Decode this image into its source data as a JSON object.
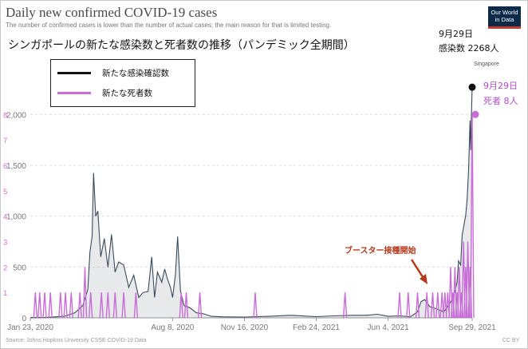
{
  "header": {
    "title": "Daily new confirmed COVID-19 cases",
    "subtitle": "The number of confirmed cases is lower than the number of actual cases; the main reason for that is limited testing.",
    "jp_title": "シンガポールの新たな感染数と死者数の推移（パンデミック全期間）",
    "logo_line1": "Our World",
    "logo_line2": "in Data"
  },
  "footer": {
    "source": "Source: Johns Hopkins University CSSE COVID-19 Data",
    "license": "CC BY"
  },
  "legend": {
    "cases_label": "新たな感染確認数",
    "deaths_label": "新たな死者数"
  },
  "annotations": {
    "cases_date": "9月29日",
    "cases_value": "感染数 2268人",
    "country_label": "Singapore",
    "deaths_date": "9月29日",
    "deaths_value": "死者 8人",
    "booster_label": "ブースター接種開始"
  },
  "colors": {
    "cases": "#111111",
    "cases_fill": "#3a4a5c",
    "deaths": "#c86dd7",
    "deaths_axis": "#d36fbf",
    "booster": "#b53a1b",
    "grid": "#dddddd",
    "axis_text": "#777777"
  },
  "chart_data": {
    "type": "line",
    "title": "Daily new confirmed COVID-19 cases",
    "x_ticks": [
      "Jan 23, 2020",
      "Aug 8, 2020",
      "Nov 16, 2020",
      "Feb 24, 2021",
      "Jun 4, 2021",
      "Sep 29, 2021"
    ],
    "x_range": [
      "2020-01-23",
      "2021-09-29"
    ],
    "y_left_ticks": [
      "0",
      "500",
      "1,000",
      "1,500",
      "2,000"
    ],
    "y_left_range": [
      0,
      2450
    ],
    "y_right_ticks": [
      "1",
      "2",
      "3",
      "4",
      "5",
      "6",
      "7",
      "8"
    ],
    "y_right_range": [
      0,
      9.8
    ],
    "grid": true,
    "legend_position": "top-left",
    "series": [
      {
        "name": "新たな感染確認数",
        "axis": "left",
        "points": [
          [
            "2020-01-23",
            2
          ],
          [
            "2020-02-15",
            5
          ],
          [
            "2020-03-10",
            15
          ],
          [
            "2020-03-25",
            50
          ],
          [
            "2020-04-05",
            120
          ],
          [
            "2020-04-12",
            280
          ],
          [
            "2020-04-15",
            650
          ],
          [
            "2020-04-18",
            800
          ],
          [
            "2020-04-20",
            1425
          ],
          [
            "2020-04-23",
            1000
          ],
          [
            "2020-04-26",
            1050
          ],
          [
            "2020-04-30",
            600
          ],
          [
            "2020-05-05",
            780
          ],
          [
            "2020-05-10",
            500
          ],
          [
            "2020-05-15",
            820
          ],
          [
            "2020-05-20",
            450
          ],
          [
            "2020-05-25",
            550
          ],
          [
            "2020-06-01",
            520
          ],
          [
            "2020-06-08",
            300
          ],
          [
            "2020-06-15",
            420
          ],
          [
            "2020-06-22",
            200
          ],
          [
            "2020-06-28",
            250
          ],
          [
            "2020-07-05",
            260
          ],
          [
            "2020-07-10",
            600
          ],
          [
            "2020-07-14",
            200
          ],
          [
            "2020-07-18",
            450
          ],
          [
            "2020-07-24",
            350
          ],
          [
            "2020-07-28",
            480
          ],
          [
            "2020-08-01",
            380
          ],
          [
            "2020-08-05",
            300
          ],
          [
            "2020-08-08",
            200
          ],
          [
            "2020-08-12",
            430
          ],
          [
            "2020-08-15",
            800
          ],
          [
            "2020-08-19",
            260
          ],
          [
            "2020-08-24",
            120
          ],
          [
            "2020-09-01",
            100
          ],
          [
            "2020-09-10",
            50
          ],
          [
            "2020-09-20",
            40
          ],
          [
            "2020-10-01",
            15
          ],
          [
            "2020-10-15",
            10
          ],
          [
            "2020-11-16",
            8
          ],
          [
            "2020-12-20",
            15
          ],
          [
            "2021-01-20",
            25
          ],
          [
            "2021-02-24",
            12
          ],
          [
            "2021-03-20",
            20
          ],
          [
            "2021-04-15",
            25
          ],
          [
            "2021-05-05",
            25
          ],
          [
            "2021-05-20",
            35
          ],
          [
            "2021-06-04",
            15
          ],
          [
            "2021-06-20",
            20
          ],
          [
            "2021-07-05",
            10
          ],
          [
            "2021-07-15",
            60
          ],
          [
            "2021-07-20",
            160
          ],
          [
            "2021-07-25",
            180
          ],
          [
            "2021-08-01",
            110
          ],
          [
            "2021-08-10",
            90
          ],
          [
            "2021-08-20",
            60
          ],
          [
            "2021-08-25",
            100
          ],
          [
            "2021-09-01",
            180
          ],
          [
            "2021-09-05",
            260
          ],
          [
            "2021-09-08",
            350
          ],
          [
            "2021-09-10",
            560
          ],
          [
            "2021-09-13",
            520
          ],
          [
            "2021-09-15",
            810
          ],
          [
            "2021-09-18",
            930
          ],
          [
            "2021-09-20",
            1010
          ],
          [
            "2021-09-22",
            1170
          ],
          [
            "2021-09-24",
            1450
          ],
          [
            "2021-09-26",
            1940
          ],
          [
            "2021-09-27",
            1650
          ],
          [
            "2021-09-28",
            2000
          ],
          [
            "2021-09-29",
            2268
          ]
        ]
      },
      {
        "name": "新たな死者数",
        "axis": "right",
        "points": [
          [
            "2020-01-30",
            1
          ],
          [
            "2020-02-05",
            1
          ],
          [
            "2020-02-12",
            1
          ],
          [
            "2020-02-20",
            1
          ],
          [
            "2020-03-05",
            1
          ],
          [
            "2020-03-12",
            1
          ],
          [
            "2020-03-20",
            1
          ],
          [
            "2020-04-01",
            1
          ],
          [
            "2020-04-08",
            2
          ],
          [
            "2020-04-16",
            1
          ],
          [
            "2020-05-01",
            1
          ],
          [
            "2020-05-10",
            1
          ],
          [
            "2020-05-20",
            1
          ],
          [
            "2020-06-01",
            1
          ],
          [
            "2020-06-18",
            1
          ],
          [
            "2020-08-20",
            1
          ],
          [
            "2020-08-27",
            1
          ],
          [
            "2020-09-15",
            1
          ],
          [
            "2020-12-01",
            1
          ],
          [
            "2021-04-05",
            1
          ],
          [
            "2021-06-20",
            1
          ],
          [
            "2021-07-02",
            1
          ],
          [
            "2021-07-15",
            1
          ],
          [
            "2021-07-28",
            1
          ],
          [
            "2021-08-05",
            1
          ],
          [
            "2021-08-12",
            1
          ],
          [
            "2021-08-18",
            1
          ],
          [
            "2021-08-22",
            1
          ],
          [
            "2021-08-26",
            1
          ],
          [
            "2021-08-30",
            2
          ],
          [
            "2021-09-02",
            1
          ],
          [
            "2021-09-05",
            2
          ],
          [
            "2021-09-08",
            1
          ],
          [
            "2021-09-11",
            2
          ],
          [
            "2021-09-14",
            1
          ],
          [
            "2021-09-17",
            3
          ],
          [
            "2021-09-20",
            2
          ],
          [
            "2021-09-23",
            3
          ],
          [
            "2021-09-26",
            2
          ],
          [
            "2021-09-29",
            8
          ]
        ]
      }
    ],
    "annotations": [
      {
        "label": "ブースター接種開始",
        "x": "2021-07-20"
      },
      {
        "label": "9月29日 感染数 2268人",
        "x": "2021-09-29",
        "y": 2268
      },
      {
        "label": "9月29日 死者 8人",
        "x": "2021-09-29",
        "y": 8
      }
    ]
  }
}
